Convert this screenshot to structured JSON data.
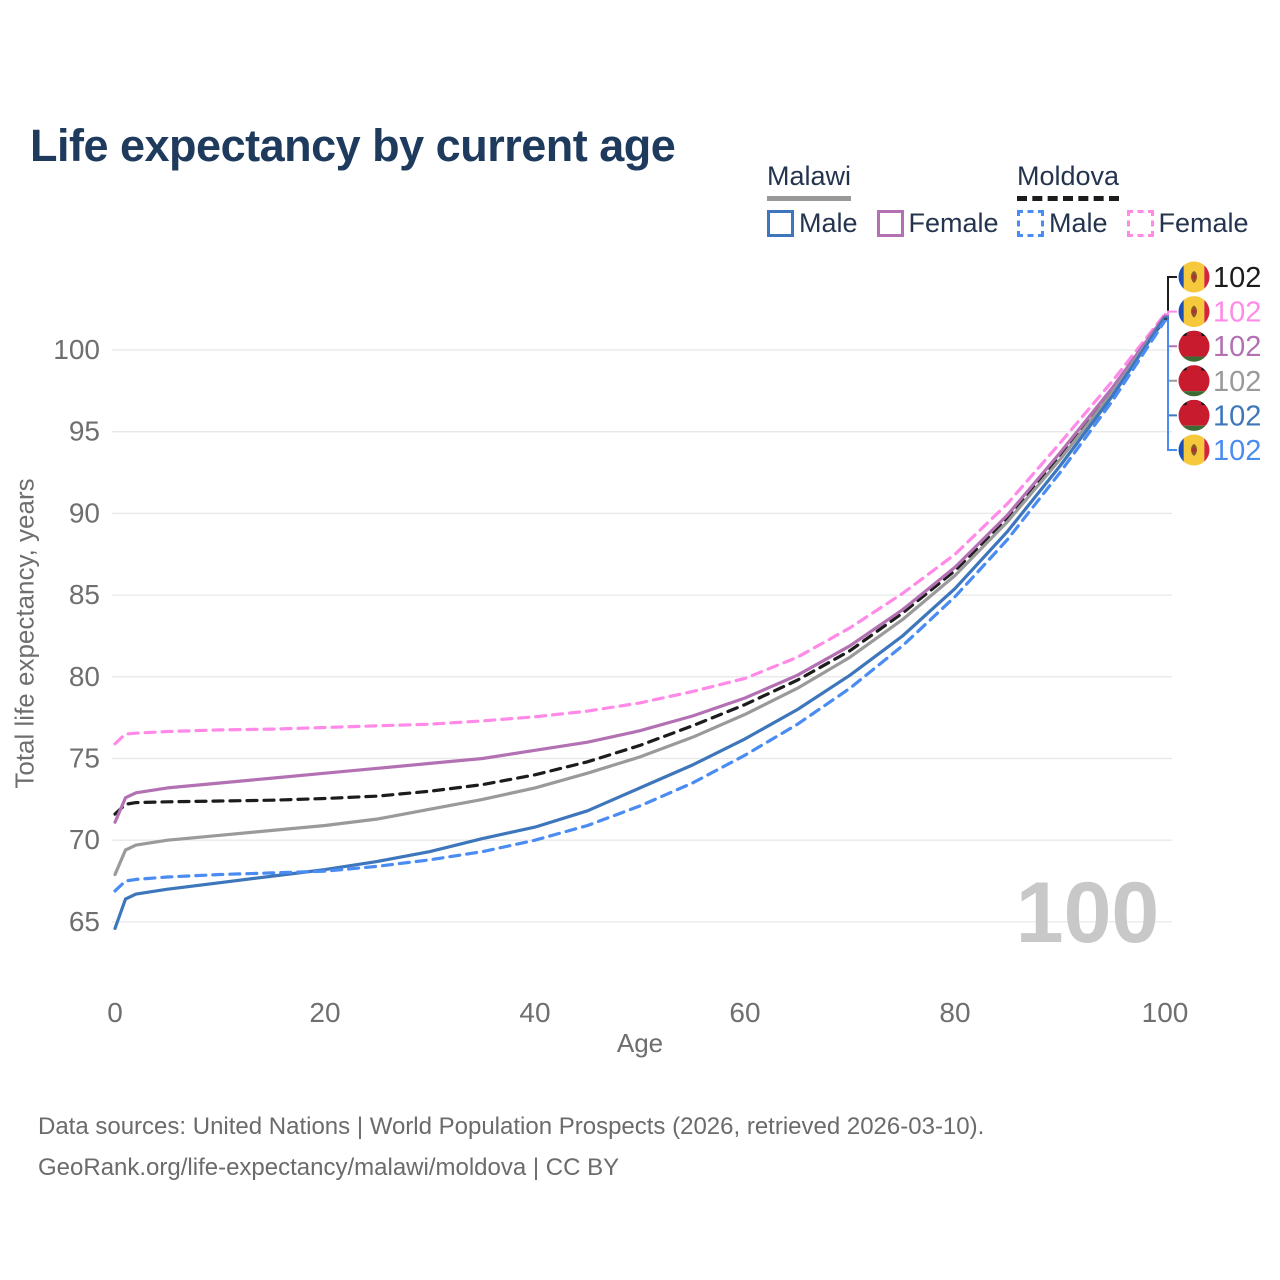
{
  "title": "Life expectancy by current age",
  "legend": {
    "groups": [
      {
        "label": "Malawi",
        "line_style": "solid",
        "line_color": "#9a9a9a",
        "items": [
          {
            "label": "Male",
            "color": "#3d76bb",
            "style": "solid"
          },
          {
            "label": "Female",
            "color": "#b371b3",
            "style": "solid"
          }
        ]
      },
      {
        "label": "Moldova",
        "line_style": "dashed",
        "line_color": "#1c1c1c",
        "items": [
          {
            "label": "Male",
            "color": "#4a8cf2",
            "style": "dashed"
          },
          {
            "label": "Female",
            "color": "#ff8ae8",
            "style": "dashed"
          }
        ]
      }
    ]
  },
  "watermark_age": "100",
  "footer": {
    "line1": "Data sources: United Nations | World Population Prospects (2026, retrieved 2026-03-10).",
    "line2": "GeoRank.org/life-expectancy/malawi/moldova | CC BY"
  },
  "chart_data": {
    "type": "line",
    "title": "Life expectancy by current age",
    "xlabel": "Age",
    "ylabel": "Total life expectancy, years",
    "xlim": [
      0,
      100
    ],
    "ylim": [
      63,
      103.5
    ],
    "xticks": [
      0,
      20,
      40,
      60,
      80,
      100
    ],
    "yticks": [
      65,
      70,
      75,
      80,
      85,
      90,
      95,
      100
    ],
    "grid": "horizontal-only",
    "legend_position": "top-right",
    "x": [
      0,
      1,
      2,
      5,
      10,
      15,
      20,
      25,
      30,
      35,
      40,
      45,
      50,
      55,
      60,
      65,
      70,
      75,
      80,
      85,
      90,
      95,
      100
    ],
    "series": [
      {
        "name": "Moldova — Both sexes",
        "country": "Moldova",
        "flag": "moldova",
        "color": "#1c1c1c",
        "dashed": true,
        "end_label": "102",
        "label_color": "#1c1c1c",
        "values": [
          71.6,
          72.2,
          72.3,
          72.35,
          72.4,
          72.45,
          72.55,
          72.7,
          73.0,
          73.4,
          74.0,
          74.8,
          75.8,
          77.0,
          78.3,
          79.8,
          81.6,
          83.9,
          86.5,
          89.7,
          93.5,
          97.5,
          101.9
        ]
      },
      {
        "name": "Moldova — Female",
        "country": "Moldova",
        "flag": "moldova",
        "color": "#ff8ae8",
        "dashed": true,
        "end_label": "102",
        "label_color": "#ff8ae8",
        "values": [
          75.9,
          76.5,
          76.55,
          76.65,
          76.75,
          76.8,
          76.9,
          77.0,
          77.1,
          77.3,
          77.55,
          77.9,
          78.4,
          79.1,
          79.9,
          81.2,
          83.0,
          85.1,
          87.5,
          90.6,
          94.3,
          98.1,
          102.2
        ]
      },
      {
        "name": "Malawi — Female",
        "country": "Malawi",
        "flag": "malawi",
        "color": "#b371b3",
        "dashed": false,
        "end_label": "102",
        "label_color": "#b371b3",
        "values": [
          71.1,
          72.6,
          72.9,
          73.2,
          73.5,
          73.8,
          74.1,
          74.4,
          74.7,
          75.0,
          75.5,
          76.0,
          76.7,
          77.6,
          78.7,
          80.1,
          81.9,
          84.1,
          86.7,
          89.9,
          93.7,
          97.7,
          102.1
        ]
      },
      {
        "name": "Malawi — Both sexes",
        "country": "Malawi",
        "flag": "malawi",
        "color": "#9a9a9a",
        "dashed": false,
        "end_label": "102",
        "label_color": "#9a9a9a",
        "values": [
          67.9,
          69.4,
          69.7,
          70.0,
          70.3,
          70.6,
          70.9,
          71.3,
          71.9,
          72.5,
          73.2,
          74.1,
          75.1,
          76.3,
          77.7,
          79.3,
          81.2,
          83.5,
          86.2,
          89.5,
          93.3,
          97.4,
          102.0
        ]
      },
      {
        "name": "Malawi — Male",
        "country": "Malawi",
        "flag": "malawi",
        "color": "#3d76bb",
        "dashed": false,
        "end_label": "102",
        "label_color": "#3d76bb",
        "values": [
          64.6,
          66.4,
          66.7,
          67.0,
          67.4,
          67.8,
          68.2,
          68.7,
          69.3,
          70.1,
          70.8,
          71.8,
          73.2,
          74.6,
          76.2,
          78.0,
          80.1,
          82.5,
          85.4,
          88.9,
          92.9,
          97.2,
          102.0
        ]
      },
      {
        "name": "Moldova — Male",
        "country": "Moldova",
        "flag": "moldova",
        "color": "#4a8cf2",
        "dashed": true,
        "end_label": "102",
        "label_color": "#4a8cf2",
        "values": [
          66.9,
          67.5,
          67.6,
          67.75,
          67.9,
          68.0,
          68.1,
          68.4,
          68.8,
          69.3,
          70.0,
          70.9,
          72.1,
          73.5,
          75.2,
          77.1,
          79.3,
          81.9,
          84.9,
          88.4,
          92.5,
          96.9,
          101.8
        ]
      }
    ]
  }
}
